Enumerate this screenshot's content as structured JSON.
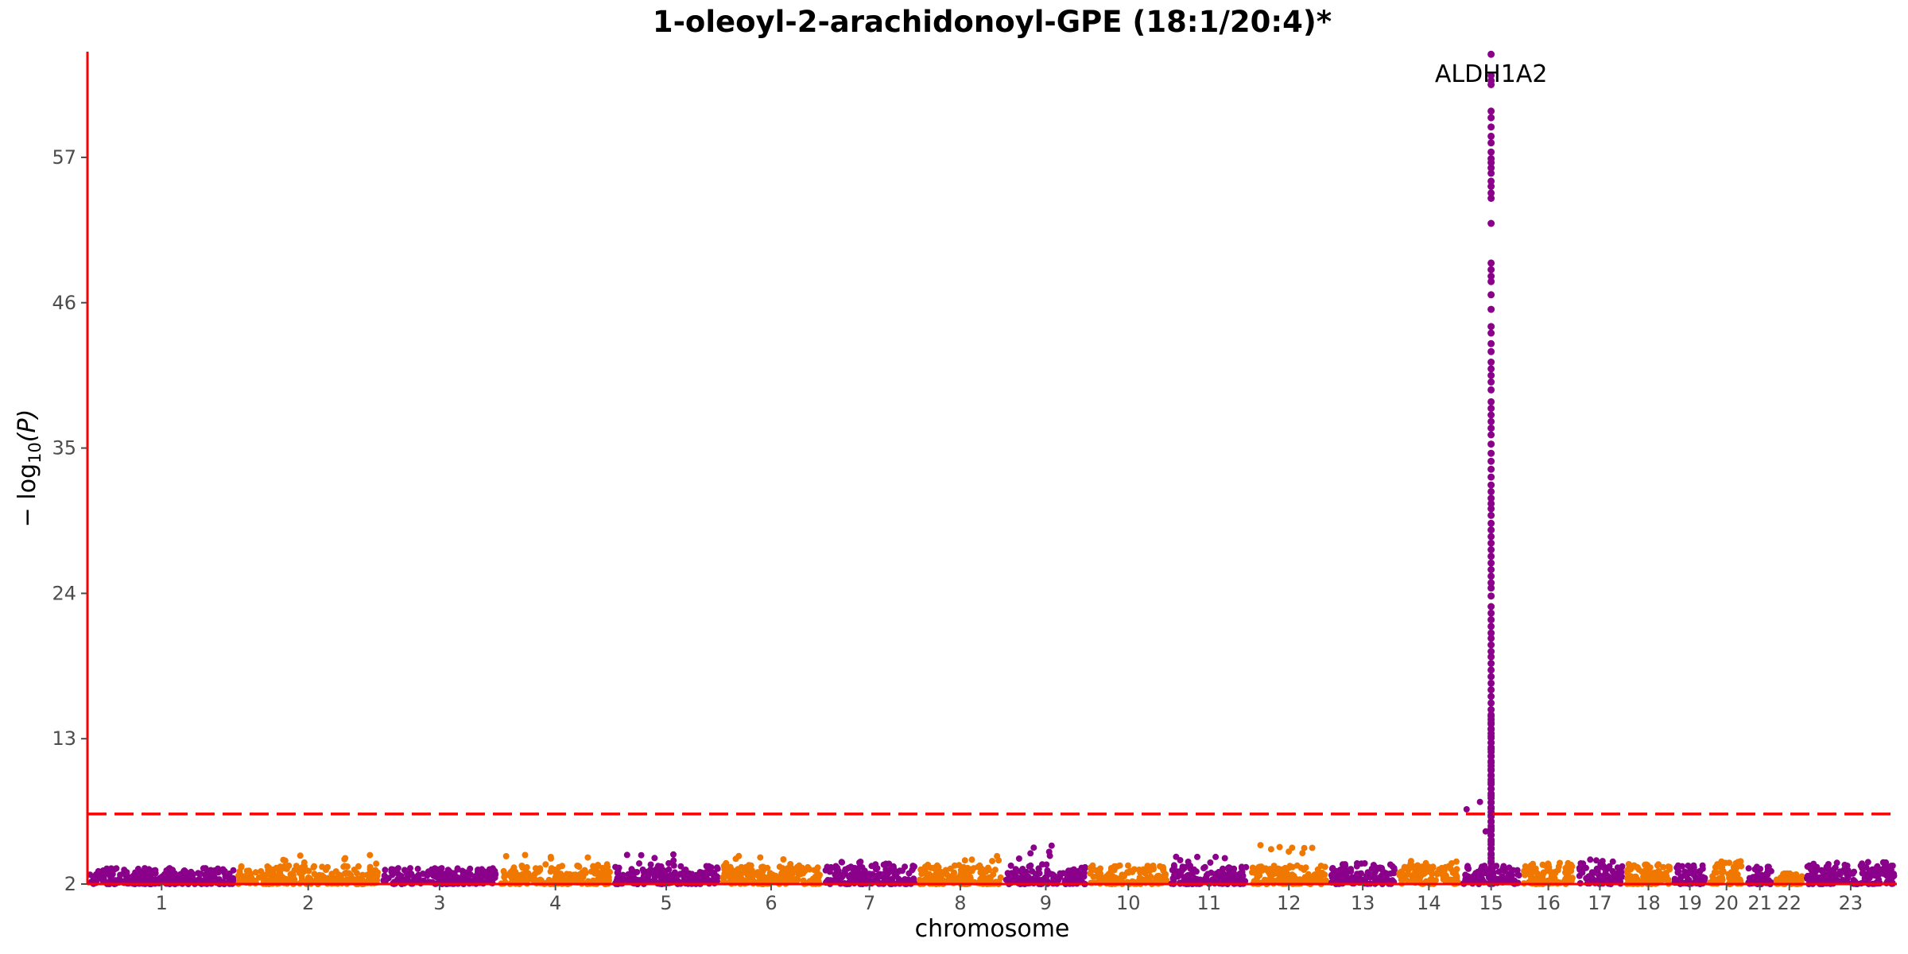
{
  "chart_data": {
    "type": "scatter",
    "title": "1-oleoyl-2-arachidonoyl-GPE (18:1/20:4)*",
    "xlabel": "chromosome",
    "ylabel": "− log₁₀(P)",
    "ylabel_parts": {
      "prefix": "− log",
      "sub": "10",
      "suffix": "(P)"
    },
    "ylim": [
      2,
      65
    ],
    "y_ticks": [
      2,
      13,
      24,
      35,
      46,
      57
    ],
    "significance_threshold": 7.3,
    "colors": {
      "odd": "#8b008b",
      "even": "#f07800",
      "axis": "#ff0000",
      "threshold": "#ff0000"
    },
    "chromosomes": [
      {
        "label": "1",
        "size": 249,
        "max": 3.2
      },
      {
        "label": "2",
        "size": 243,
        "max": 4.2
      },
      {
        "label": "3",
        "size": 198,
        "max": 3.2
      },
      {
        "label": "4",
        "size": 191,
        "max": 4.2
      },
      {
        "label": "5",
        "size": 181,
        "max": 4.4
      },
      {
        "label": "6",
        "size": 171,
        "max": 4.5
      },
      {
        "label": "7",
        "size": 159,
        "max": 3.9
      },
      {
        "label": "8",
        "size": 146,
        "max": 4.3
      },
      {
        "label": "9",
        "size": 141,
        "max": 5.1
      },
      {
        "label": "10",
        "size": 136,
        "max": 3.4
      },
      {
        "label": "11",
        "size": 135,
        "max": 4.1
      },
      {
        "label": "12",
        "size": 133,
        "max": 5.0
      },
      {
        "label": "13",
        "size": 115,
        "max": 3.6
      },
      {
        "label": "14",
        "size": 107,
        "max": 3.8
      },
      {
        "label": "15",
        "size": 102,
        "max": 65.0
      },
      {
        "label": "16",
        "size": 90,
        "max": 3.6
      },
      {
        "label": "17",
        "size": 83,
        "max": 3.9
      },
      {
        "label": "18",
        "size": 80,
        "max": 3.5
      },
      {
        "label": "19",
        "size": 59,
        "max": 3.4
      },
      {
        "label": "20",
        "size": 64,
        "max": 3.8
      },
      {
        "label": "21",
        "size": 48,
        "max": 3.3
      },
      {
        "label": "22",
        "size": 51,
        "max": 2.8
      },
      {
        "label": "23",
        "size": 155,
        "max": 3.7
      }
    ],
    "peak": {
      "chromosome": "15",
      "gene": "ALDH1A2",
      "top_value": 65.0,
      "values": [
        64.8,
        63.2,
        62.8,
        62.5,
        60.5,
        60.0,
        59.3,
        58.6,
        58.1,
        57.4,
        56.9,
        56.6,
        56.2,
        55.8,
        55.2,
        54.8,
        54.3,
        53.9,
        52.0,
        49.0,
        48.5,
        48.0,
        47.6,
        46.6,
        45.5,
        44.2,
        43.7,
        42.9,
        42.3,
        41.5,
        41.0,
        40.5,
        40.0,
        39.4,
        38.5,
        38.0,
        37.5,
        37.0,
        36.5,
        36.0,
        35.3,
        34.6,
        34.0,
        33.4,
        32.8,
        32.2,
        31.7,
        31.2,
        30.8,
        30.4,
        29.9,
        29.3,
        28.8,
        28.3,
        27.8,
        27.3,
        26.8,
        26.3,
        25.8,
        25.3,
        24.8,
        24.4,
        23.8,
        23.0,
        22.5,
        22.0,
        21.5,
        21.0,
        20.6,
        20.1,
        19.6,
        19.2,
        18.7,
        18.2,
        17.7,
        17.2,
        16.7,
        16.2,
        15.7,
        15.2,
        14.7,
        14.2,
        13.7,
        13.2,
        12.7,
        12.2,
        11.7,
        11.2,
        10.7,
        10.2,
        9.7,
        9.2,
        8.7,
        8.2,
        7.7,
        7.2,
        6.7,
        6.2,
        5.7,
        5.2,
        4.7,
        4.2,
        3.7,
        3.2,
        2.7,
        2.2
      ]
    }
  }
}
